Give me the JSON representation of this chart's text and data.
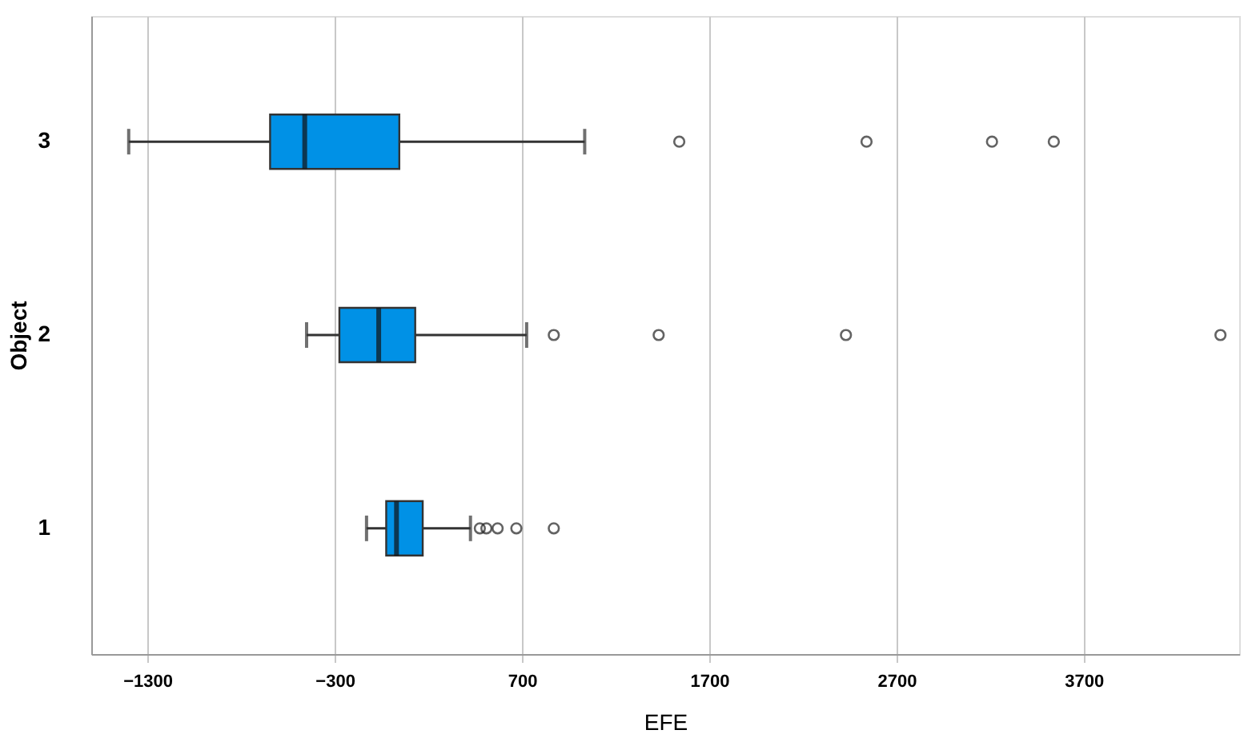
{
  "chart_data": {
    "type": "box",
    "orientation": "horizontal",
    "xlabel": "EFE",
    "ylabel": "Object",
    "categories": [
      "3",
      "2",
      "1"
    ],
    "series": [
      {
        "color": "#0091e6",
        "boxes": [
          {
            "low": -1400,
            "q1": -645,
            "median": -460,
            "q3": 45,
            "high": 1035,
            "outliers": [
              1540,
              2540,
              3210,
              3540
            ]
          },
          {
            "low": -450,
            "q1": -275,
            "median": -65,
            "q3": 130,
            "high": 725,
            "outliers": [
              870,
              1430,
              2430,
              4430
            ]
          },
          {
            "low": -130,
            "q1": -25,
            "median": 30,
            "q3": 170,
            "high": 425,
            "outliers": [
              475,
              510,
              570,
              670,
              870
            ]
          }
        ]
      }
    ],
    "xlim": [
      -1600,
      4530
    ],
    "xticks": [
      {
        "value": -1300,
        "label": "−1300"
      },
      {
        "value": -300,
        "label": "−300"
      },
      700,
      1700,
      2700,
      3700
    ],
    "grid": "x"
  }
}
